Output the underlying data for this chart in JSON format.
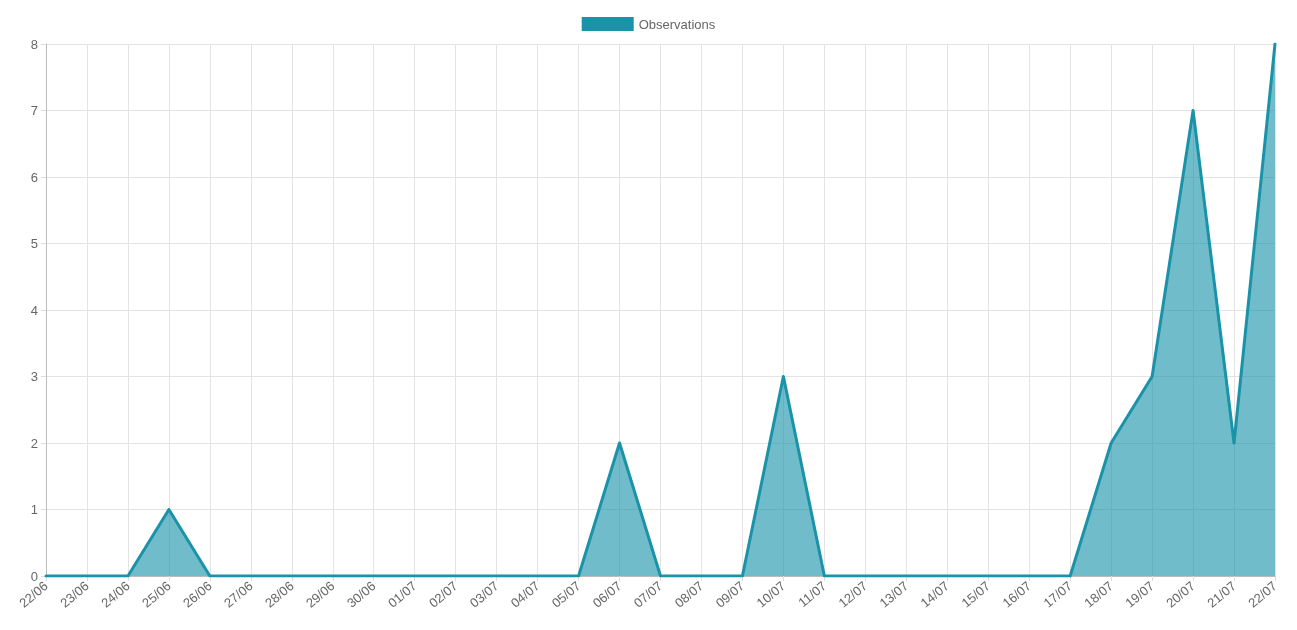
{
  "chart_data": {
    "type": "area",
    "categories": [
      "22/06",
      "23/06",
      "24/06",
      "25/06",
      "26/06",
      "27/06",
      "28/06",
      "29/06",
      "30/06",
      "01/07",
      "02/07",
      "03/07",
      "04/07",
      "05/07",
      "06/07",
      "07/07",
      "08/07",
      "09/07",
      "10/07",
      "11/07",
      "12/07",
      "13/07",
      "14/07",
      "15/07",
      "16/07",
      "17/07",
      "18/07",
      "19/07",
      "20/07",
      "21/07",
      "22/07"
    ],
    "series": [
      {
        "name": "Observations",
        "color": "#1a93a9",
        "values": [
          0,
          0,
          0,
          1,
          0,
          0,
          0,
          0,
          0,
          0,
          0,
          0,
          0,
          0,
          2,
          0,
          0,
          0,
          3,
          0,
          0,
          0,
          0,
          0,
          0,
          0,
          2,
          3,
          7,
          2,
          8
        ]
      }
    ],
    "ylim": [
      0,
      8
    ],
    "yticks": [
      0,
      1,
      2,
      3,
      4,
      5,
      6,
      7,
      8
    ],
    "grid": true,
    "legend": "top",
    "marker": "none",
    "line_style": "solid"
  }
}
